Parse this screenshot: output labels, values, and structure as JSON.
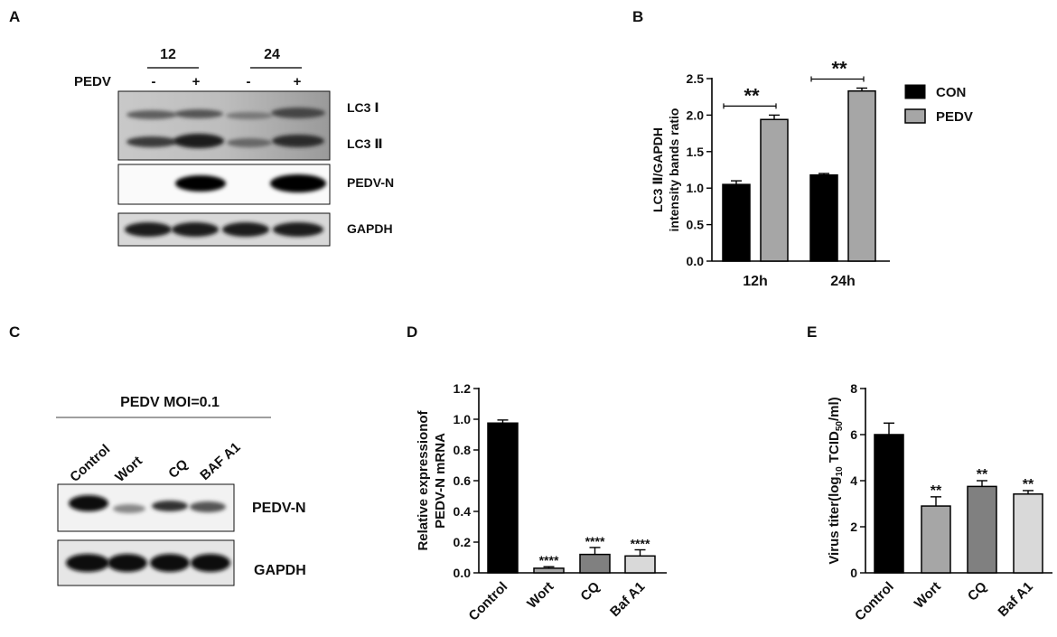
{
  "panels": {
    "A": {
      "letter": "A",
      "time_labels": [
        "12",
        "24"
      ],
      "row_label": "PEDV",
      "signs": [
        "-",
        "+",
        "-",
        "+"
      ],
      "bands": [
        "LC3 Ⅰ",
        "LC3 Ⅱ",
        "PEDV-N",
        "GAPDH"
      ]
    },
    "B": {
      "letter": "B"
    },
    "C": {
      "letter": "C",
      "header": "PEDV MOI=0.1",
      "lanes": [
        "Control",
        "Wort",
        "CQ",
        "BAF A1"
      ],
      "bands": [
        "PEDV-N",
        "GAPDH"
      ]
    },
    "D": {
      "letter": "D"
    },
    "E": {
      "letter": "E"
    }
  },
  "chart_data": [
    {
      "id": "B",
      "type": "bar",
      "categories": [
        "12h",
        "24h"
      ],
      "series": [
        {
          "name": "CON",
          "values": [
            1.05,
            1.18
          ],
          "errors": [
            0.05,
            0.02
          ],
          "color": "#000000"
        },
        {
          "name": "PEDV",
          "values": [
            1.94,
            2.33
          ],
          "errors": [
            0.06,
            0.04
          ],
          "color": "#a6a6a6"
        }
      ],
      "ylabel_lines": [
        "LC3 Ⅱ/GAPDH",
        "intensity bands ratio"
      ],
      "ylim": [
        0,
        2.5
      ],
      "yticks": [
        "0.0",
        "0.5",
        "1.0",
        "1.5",
        "2.0",
        "2.5"
      ],
      "significance": [
        "**",
        "**"
      ],
      "legend": "right",
      "grid": false
    },
    {
      "id": "D",
      "type": "bar",
      "categories": [
        "Control",
        "Wort",
        "CQ",
        "Baf A1"
      ],
      "values": [
        0.975,
        0.03,
        0.12,
        0.11
      ],
      "errors": [
        0.02,
        0.01,
        0.045,
        0.04
      ],
      "colors": [
        "#000000",
        "#a6a6a6",
        "#808080",
        "#d9d9d9"
      ],
      "ylabel_lines": [
        "Relative expressionof",
        "PEDV-N mRNA"
      ],
      "ylim": [
        0,
        1.2
      ],
      "yticks": [
        "0.0",
        "0.2",
        "0.4",
        "0.6",
        "0.8",
        "1.0",
        "1.2"
      ],
      "significance": [
        "",
        "****",
        "****",
        "****"
      ],
      "grid": false
    },
    {
      "id": "E",
      "type": "bar",
      "categories": [
        "Control",
        "Wort",
        "CQ",
        "Baf A1"
      ],
      "values": [
        6.0,
        2.9,
        3.75,
        3.42
      ],
      "errors": [
        0.5,
        0.4,
        0.25,
        0.15
      ],
      "colors": [
        "#000000",
        "#a6a6a6",
        "#808080",
        "#d9d9d9"
      ],
      "ylabel_parts": [
        "Virus titer(log",
        "10",
        " TCID",
        "50",
        "/ml)"
      ],
      "ylim": [
        0,
        8
      ],
      "yticks": [
        "0",
        "2",
        "4",
        "6",
        "8"
      ],
      "significance": [
        "",
        "**",
        "**",
        "**"
      ],
      "grid": false
    }
  ]
}
